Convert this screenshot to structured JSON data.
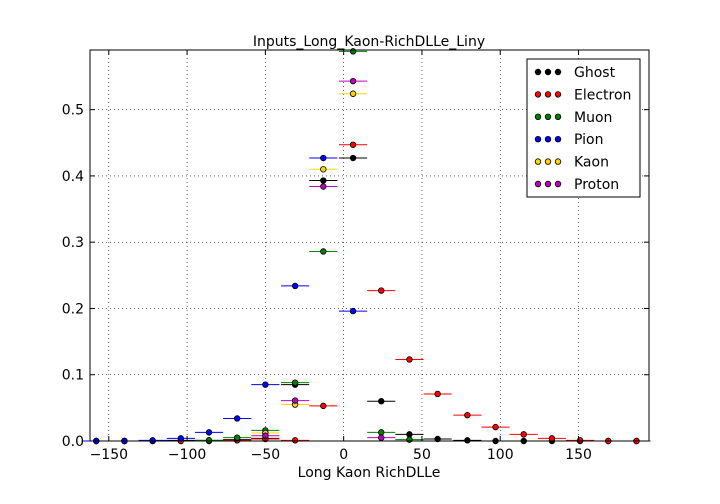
{
  "chart_data": {
    "type": "scatter",
    "title": "Inputs_Long_Kaon-RichDLLe_Liny",
    "xlabel": "Long Kaon RichDLLe",
    "ylabel": "",
    "xlim": [
      -162,
      195
    ],
    "ylim": [
      0,
      0.59
    ],
    "x_ticks": [
      -150,
      -100,
      -50,
      0,
      50,
      100,
      150
    ],
    "x_tick_labels": [
      "−150",
      "−100",
      "−50",
      "0",
      "50",
      "100",
      "150"
    ],
    "y_ticks": [
      0.0,
      0.1,
      0.2,
      0.3,
      0.4,
      0.5
    ],
    "y_tick_labels": [
      "0.0",
      "0.1",
      "0.2",
      "0.3",
      "0.4",
      "0.5"
    ],
    "grid": true,
    "legend_position": "top-right",
    "x_error_halfwidth": 9,
    "series": [
      {
        "name": "Ghost",
        "color": "#000000",
        "points": [
          [
            -158,
            0
          ],
          [
            -140,
            0
          ],
          [
            -122,
            0
          ],
          [
            -104,
            0.001
          ],
          [
            -86,
            0.001
          ],
          [
            -68,
            0.002
          ],
          [
            -50,
            0.004
          ],
          [
            -31,
            0.085
          ],
          [
            -13,
            0.393
          ],
          [
            6,
            0.427
          ],
          [
            24,
            0.06
          ],
          [
            42,
            0.01
          ],
          [
            60,
            0.003
          ],
          [
            79,
            0.001
          ],
          [
            97,
            0
          ],
          [
            115,
            0
          ],
          [
            133,
            0
          ],
          [
            151,
            0
          ],
          [
            169,
            0
          ],
          [
            187,
            0
          ]
        ]
      },
      {
        "name": "Electron",
        "color": "#ff0000",
        "points": [
          [
            -158,
            0
          ],
          [
            -140,
            0
          ],
          [
            -122,
            0
          ],
          [
            -104,
            0
          ],
          [
            -86,
            0
          ],
          [
            -68,
            0.001
          ],
          [
            -50,
            0.003
          ],
          [
            -31,
            0.001
          ],
          [
            -13,
            0.053
          ],
          [
            6,
            0.447
          ],
          [
            24,
            0.227
          ],
          [
            42,
            0.123
          ],
          [
            60,
            0.071
          ],
          [
            79,
            0.039
          ],
          [
            97,
            0.021
          ],
          [
            115,
            0.01
          ],
          [
            133,
            0.004
          ],
          [
            151,
            0.001
          ],
          [
            169,
            0
          ],
          [
            187,
            0
          ]
        ]
      },
      {
        "name": "Muon",
        "color": "#008000",
        "points": [
          [
            -86,
            0.001
          ],
          [
            -68,
            0.005
          ],
          [
            -50,
            0.016
          ],
          [
            -31,
            0.088
          ],
          [
            -13,
            0.286
          ],
          [
            6,
            0.588
          ],
          [
            24,
            0.013
          ],
          [
            42,
            0.002
          ]
        ]
      },
      {
        "name": "Pion",
        "color": "#0000ff",
        "points": [
          [
            -158,
            0
          ],
          [
            -140,
            0
          ],
          [
            -122,
            0.001
          ],
          [
            -104,
            0.004
          ],
          [
            -86,
            0.013
          ],
          [
            -68,
            0.034
          ],
          [
            -50,
            0.085
          ],
          [
            -31,
            0.234
          ],
          [
            -13,
            0.427
          ],
          [
            6,
            0.196
          ]
        ]
      },
      {
        "name": "Kaon",
        "color": "#ffd700",
        "points": [
          [
            -50,
            0.012
          ],
          [
            -31,
            0.055
          ],
          [
            -13,
            0.41
          ],
          [
            6,
            0.524
          ]
        ]
      },
      {
        "name": "Proton",
        "color": "#bf00bf",
        "points": [
          [
            -50,
            0.008
          ],
          [
            -31,
            0.061
          ],
          [
            -13,
            0.384
          ],
          [
            6,
            0.543
          ],
          [
            24,
            0.005
          ]
        ]
      }
    ]
  }
}
